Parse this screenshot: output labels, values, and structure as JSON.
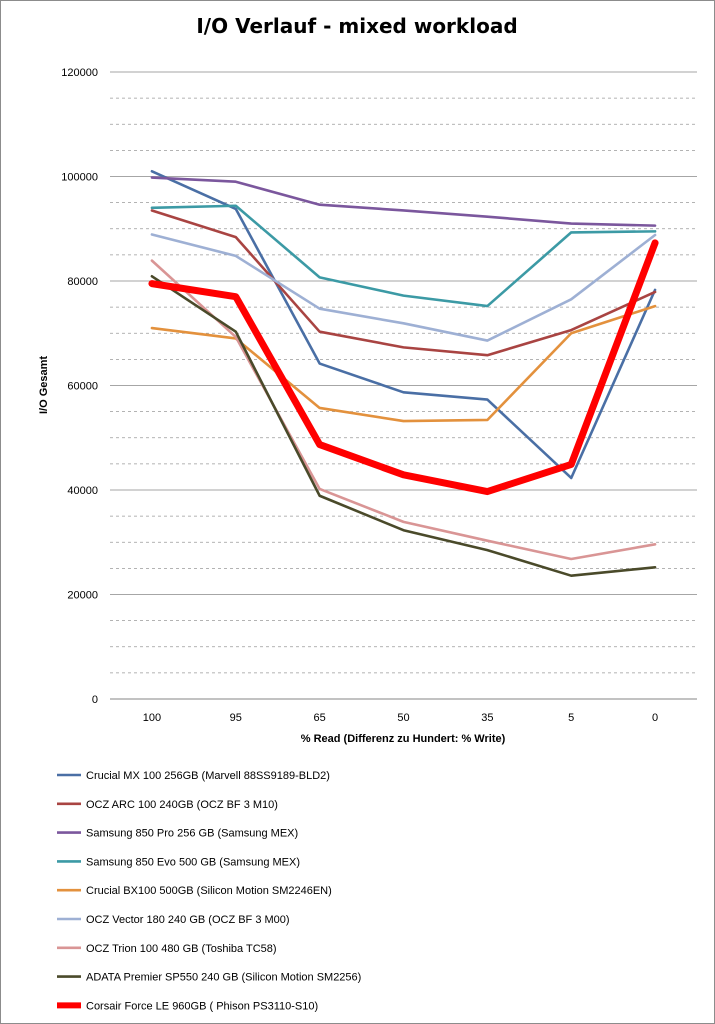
{
  "chart_data": {
    "type": "line",
    "title": "I/O Verlauf - mixed workload",
    "xlabel": "% Read (Differenz zu Hundert: % Write)",
    "ylabel": "I/O Gesamt",
    "categories": [
      "100",
      "95",
      "65",
      "50",
      "35",
      "5",
      "0"
    ],
    "ylim": [
      0,
      120000
    ],
    "yticks": [
      0,
      20000,
      40000,
      60000,
      80000,
      100000,
      120000
    ],
    "ytick_labels": [
      "0",
      "20000",
      "40000",
      "60000",
      "80000",
      "100000",
      "120000"
    ],
    "grid": true,
    "legend_position": "bottom",
    "series": [
      {
        "name": "Crucial MX 100 256GB (Marvell 88SS9189-BLD2)",
        "color": "#4a6fa5",
        "values": [
          101000,
          93800,
          64200,
          58700,
          57300,
          42300,
          78300
        ]
      },
      {
        "name": "OCZ ARC 100 240GB (OCZ BF 3 M10)",
        "color": "#a94442",
        "values": [
          93500,
          88400,
          70300,
          67300,
          65800,
          70600,
          77900
        ]
      },
      {
        "name": "Samsung 850 Pro 256 GB (Samsung MEX)",
        "color": "#7b579d",
        "values": [
          99800,
          99000,
          94600,
          93500,
          92300,
          91000,
          90600
        ]
      },
      {
        "name": "Samsung 850 Evo 500 GB (Samsung MEX)",
        "color": "#3c9aa5",
        "values": [
          94000,
          94400,
          80700,
          77200,
          75200,
          89300,
          89500
        ]
      },
      {
        "name": "Crucial BX100 500GB (Silicon Motion SM2246EN)",
        "color": "#e3913d",
        "values": [
          71000,
          69000,
          55700,
          53200,
          53400,
          70000,
          75200
        ]
      },
      {
        "name": "OCZ Vector 180 240 GB (OCZ BF 3 M00)",
        "color": "#9eb0d4",
        "values": [
          88900,
          84800,
          74700,
          71900,
          68600,
          76500,
          88800
        ]
      },
      {
        "name": "OCZ Trion 100 480 GB (Toshiba TC58)",
        "color": "#d99595",
        "values": [
          83900,
          69300,
          40200,
          33900,
          30300,
          26800,
          29600
        ]
      },
      {
        "name": "ADATA Premier SP550 240 GB (Silicon Motion SM2256)",
        "color": "#4a4a2a",
        "values": [
          80900,
          70300,
          38900,
          32300,
          28500,
          23600,
          25200
        ]
      },
      {
        "name": "Corsair Force LE 960GB ( Phison PS3110-S10)",
        "color": "#ff0000",
        "values": [
          79500,
          77000,
          48700,
          42900,
          39700,
          44900,
          87300
        ]
      }
    ]
  }
}
